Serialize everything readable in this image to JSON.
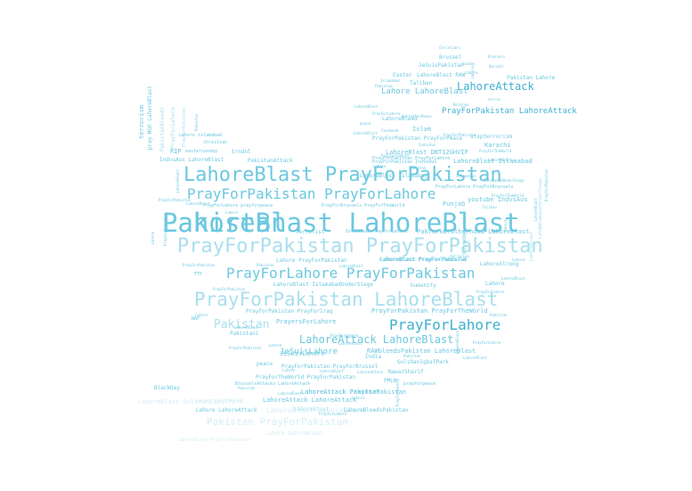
{
  "palette": {
    "strong": "#3fb0d0",
    "mid": "#6cc8e0",
    "light": "#a9dfee",
    "faint": "#d4eef6"
  },
  "words": [
    {
      "text": "LahoreBlast LahoreBlast",
      "tone": "mid"
    },
    {
      "text": "LahoreBlast PrayForPakistan",
      "tone": "mid"
    },
    {
      "text": "PrayForPakistan PrayForPakistan",
      "tone": "light"
    },
    {
      "text": "PrayForPakistan LahoreBlast",
      "tone": "light"
    },
    {
      "text": "PrayForPakistan PrayForLahore",
      "tone": "mid"
    },
    {
      "text": "PrayForLahore PrayForPakistan",
      "tone": "mid"
    },
    {
      "text": "PrayForLahore",
      "tone": "strong"
    },
    {
      "text": "LahoreAttack LahoreBlast",
      "tone": "mid"
    },
    {
      "text": "Pakistan",
      "tone": "light"
    },
    {
      "text": "LahoreAttack",
      "tone": "strong"
    },
    {
      "text": "Pakistan PrayForPakistan",
      "tone": "faint"
    },
    {
      "text": "Lahore LahoreBlast",
      "tone": "mid"
    },
    {
      "text": "PrayForPakistan LahoreAttack",
      "tone": "strong"
    },
    {
      "text": "JeSuisLahore",
      "tone": "mid"
    },
    {
      "text": "PrayersForLahore",
      "tone": "mid"
    },
    {
      "text": "LahoreAttack Pakistan",
      "tone": "mid"
    },
    {
      "text": "LahoreBlast LahoreBlast",
      "tone": "faint"
    },
    {
      "text": "LahoreAttack LahoreAttack",
      "tone": "mid"
    },
    {
      "text": "LahoreBlast Islamabad",
      "tone": "mid"
    },
    {
      "text": "LahoreBlast DBT12GHVIP",
      "tone": "mid"
    },
    {
      "text": "Karachi",
      "tone": "mid"
    },
    {
      "text": "Islam",
      "tone": "mid"
    },
    {
      "text": "youtube IndvsAus",
      "tone": "mid"
    },
    {
      "text": "Punjab",
      "tone": "mid"
    },
    {
      "text": "PakTurkBrotherhood LahoreBlast",
      "tone": "mid"
    },
    {
      "text": "PrayForPakistan PrayForPeace",
      "tone": "mid"
    },
    {
      "text": "IndvsAus LahoreBlast",
      "tone": "mid"
    },
    {
      "text": "RIP",
      "tone": "mid"
    },
    {
      "text": "PakistanAttack",
      "tone": "mid"
    },
    {
      "text": "LahoreBlast PrayForPakistan",
      "tone": "mid"
    },
    {
      "text": "Lahore PrayForPakistan",
      "tone": "mid"
    },
    {
      "text": "LahoreBlast PrayForTheWorld",
      "tone": "mid"
    },
    {
      "text": "LahoreStrong",
      "tone": "mid"
    },
    {
      "text": "LahoreBlast IslamabadUnderSiege",
      "tone": "mid"
    },
    {
      "text": "humanity",
      "tone": "mid"
    },
    {
      "text": "PrayForPakistan PrayForTheWorld",
      "tone": "mid"
    },
    {
      "text": "PrayForPakistan PrayForIraq",
      "tone": "mid"
    },
    {
      "text": "Pakistani",
      "tone": "mid"
    },
    {
      "text": "JeSuisLahore",
      "tone": "mid"
    },
    {
      "text": "India",
      "tone": "mid"
    },
    {
      "text": "peace",
      "tone": "mid"
    },
    {
      "text": "PrayForPakistan PrayForBrussel",
      "tone": "mid"
    },
    {
      "text": "GulshanIqbalPark",
      "tone": "mid"
    },
    {
      "text": "NawazSharif",
      "tone": "mid"
    },
    {
      "text": "PMLN",
      "tone": "mid"
    },
    {
      "text": "PrayForTheWorld PrayForPakistan",
      "tone": "mid"
    },
    {
      "text": "BrusselsAttacks LahoreAttack",
      "tone": "mid"
    },
    {
      "text": "LahoreAttack PrayForPakistan",
      "tone": "mid"
    },
    {
      "text": "Lahore LahoreAttack",
      "tone": "mid"
    },
    {
      "text": "LahoreBlast",
      "tone": "light"
    },
    {
      "text": "LahoreBleedsPakistan",
      "tone": "mid"
    },
    {
      "text": "LahoreBlast GulshanIqbalPark",
      "tone": "faint"
    },
    {
      "text": "BlackDay",
      "tone": "mid"
    },
    {
      "text": "Lahore LahoreBlast",
      "tone": "faint"
    },
    {
      "text": "RAWbleedsPakistan LahoreBlast",
      "tone": "mid"
    },
    {
      "text": "terrorist",
      "tone": "mid"
    },
    {
      "text": "Easter",
      "tone": "mid"
    },
    {
      "text": "Taliban",
      "tone": "mid"
    },
    {
      "text": "LahoreBlast RAW",
      "tone": "mid"
    },
    {
      "text": "JeSuisPakistan",
      "tone": "mid"
    },
    {
      "text": "Brussel",
      "tone": "mid"
    },
    {
      "text": "Pakistan Lahore",
      "tone": "mid"
    },
    {
      "text": "stopterrorism",
      "tone": "mid"
    },
    {
      "text": "LahoreBleed",
      "tone": "mid"
    },
    {
      "text": "terrorism",
      "tone": "mid"
    },
    {
      "text": "Lahore islamabad",
      "tone": "mid"
    },
    {
      "text": "christian",
      "tone": "mid"
    },
    {
      "text": "eastersunday",
      "tone": "mid"
    },
    {
      "text": "trndnl",
      "tone": "mid"
    },
    {
      "text": "PrayForLahore PrayForBrussels",
      "tone": "mid"
    },
    {
      "text": "PrayForLahore prayforpeace",
      "tone": "mid"
    },
    {
      "text": "PrayForBrussels PrayForTheWorld",
      "tone": "mid"
    },
    {
      "text": "Islamabad PrayForLahore",
      "tone": "mid"
    },
    {
      "text": "LahoreBlast Islamabad",
      "tone": "mid"
    },
    {
      "text": "Lahore",
      "tone": "mid"
    },
    {
      "text": "prayforpeace",
      "tone": "mid"
    },
    {
      "text": "Lahore LahoreBlast",
      "tone": "faint"
    },
    {
      "text": "LahoreBlast PrayForPakistan",
      "tone": "faint"
    },
    {
      "text": "TTP",
      "tone": "mid"
    },
    {
      "text": "NAP",
      "tone": "mid"
    },
    {
      "text": "pray NGO LahoreBlast",
      "tone": "mid"
    },
    {
      "text": "PrayForPakistan IndvsAus",
      "tone": "mid"
    },
    {
      "text": "PrayForPakistan PrayForLahore",
      "tone": "mid"
    },
    {
      "text": "PakistanBleeds",
      "tone": "light"
    },
    {
      "text": "PrayForLahore",
      "tone": "light"
    },
    {
      "text": "PrayForPakistan",
      "tone": "light"
    },
    {
      "text": "IslamabadUnderSiege",
      "tone": "light"
    },
    {
      "text": "Lahore",
      "tone": "light"
    },
    {
      "text": "LahoreBlast",
      "tone": "light"
    },
    {
      "text": "PunjabOperation",
      "tone": "mid"
    },
    {
      "text": "Christians",
      "tone": "mid"
    },
    {
      "text": "Sunday",
      "tone": "mid"
    },
    {
      "text": "Brussels",
      "tone": "mid"
    },
    {
      "text": "Karachi",
      "tone": "mid"
    },
    {
      "text": "Lahore",
      "tone": "mid"
    },
    {
      "text": "Islamabad",
      "tone": "mid"
    },
    {
      "text": "Pakistan",
      "tone": "mid"
    },
    {
      "text": "Belgium",
      "tone": "mid"
    },
    {
      "text": "terror",
      "tone": "mid"
    },
    {
      "text": "LahoreBlast",
      "tone": "mid"
    },
    {
      "text": "PrayForLahore",
      "tone": "mid"
    },
    {
      "text": "UnitedForPeace",
      "tone": "mid"
    },
    {
      "text": "peace",
      "tone": "mid"
    },
    {
      "text": "Facebook",
      "tone": "mid"
    },
    {
      "text": "LahoreBlast",
      "tone": "mid"
    },
    {
      "text": "PrayForPakistan",
      "tone": "mid"
    },
    {
      "text": "IndvsAus",
      "tone": "mid"
    },
    {
      "text": "PrayForTheWorld",
      "tone": "mid"
    },
    {
      "text": "LahoreBlast",
      "tone": "mid"
    },
    {
      "text": "PrayForLahore",
      "tone": "mid"
    },
    {
      "text": "Lahore",
      "tone": "mid"
    },
    {
      "text": "Pakistan",
      "tone": "mid"
    },
    {
      "text": "Islamabad",
      "tone": "mid"
    },
    {
      "text": "IslamabadUnderSiege",
      "tone": "mid"
    },
    {
      "text": "PrayForTheWorld",
      "tone": "mid"
    },
    {
      "text": "Taliban",
      "tone": "mid"
    },
    {
      "text": "PrayForPakistan",
      "tone": "mid"
    },
    {
      "text": "LahoreBlast",
      "tone": "mid"
    },
    {
      "text": "Lahore",
      "tone": "mid"
    },
    {
      "text": "PrayForPakistan",
      "tone": "mid"
    },
    {
      "text": "Pakistan",
      "tone": "mid"
    },
    {
      "text": "LahoreBlast",
      "tone": "mid"
    },
    {
      "text": "terrorism",
      "tone": "mid"
    },
    {
      "text": "Lahore",
      "tone": "mid"
    },
    {
      "text": "LahoreBlast",
      "tone": "mid"
    },
    {
      "text": "PrayForLahore",
      "tone": "mid"
    },
    {
      "text": "PrayForPakistan",
      "tone": "mid"
    },
    {
      "text": "PrayForLahore",
      "tone": "mid"
    },
    {
      "text": "Lahore",
      "tone": "mid"
    },
    {
      "text": "LahoreBlast",
      "tone": "mid"
    },
    {
      "text": "Pakistan",
      "tone": "mid"
    },
    {
      "text": "Lahore",
      "tone": "mid"
    },
    {
      "text": "LahoreBlast",
      "tone": "mid"
    },
    {
      "text": "LahoreAttack",
      "tone": "mid"
    },
    {
      "text": "Pakistan",
      "tone": "mid"
    },
    {
      "text": "LahoreBlast",
      "tone": "mid"
    },
    {
      "text": "PrayForLahore",
      "tone": "mid"
    },
    {
      "text": "Lahore",
      "tone": "mid"
    },
    {
      "text": "PrayForPakistan",
      "tone": "mid"
    },
    {
      "text": "LahoreBlast",
      "tone": "mid"
    },
    {
      "text": "Lahore",
      "tone": "mid"
    },
    {
      "text": "Pakistan",
      "tone": "mid"
    },
    {
      "text": "PrayForLahore",
      "tone": "mid"
    },
    {
      "text": "LahoreBlast",
      "tone": "mid"
    },
    {
      "text": "Lahore",
      "tone": "mid"
    },
    {
      "text": "PrayForPakistan",
      "tone": "mid"
    },
    {
      "text": "LahoreBlast",
      "tone": "mid"
    },
    {
      "text": "Pakistan",
      "tone": "mid"
    },
    {
      "text": "Lahore",
      "tone": "mid"
    },
    {
      "text": "LahoreBlast",
      "tone": "mid"
    },
    {
      "text": "PrayForLahore",
      "tone": "mid"
    },
    {
      "text": "Lahore",
      "tone": "mid"
    },
    {
      "text": "LahoreBlast",
      "tone": "mid"
    },
    {
      "text": "PrayForPakistan",
      "tone": "mid"
    },
    {
      "text": "Pakistan",
      "tone": "mid"
    }
  ]
}
